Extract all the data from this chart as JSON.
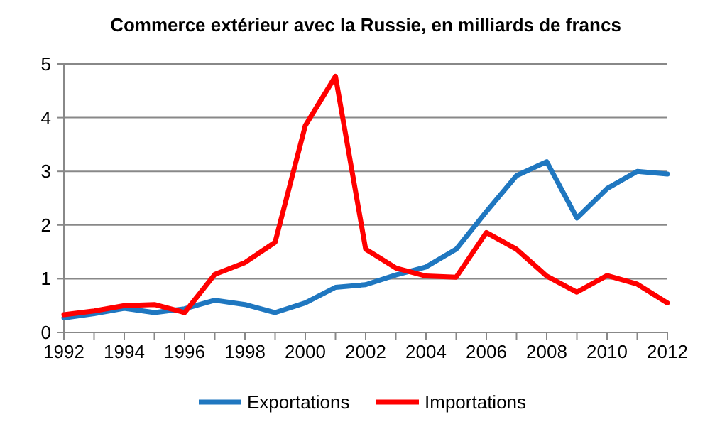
{
  "chart_data": {
    "type": "line",
    "title": "Commerce extérieur avec la Russie, en milliards de francs",
    "x": [
      1992,
      1993,
      1994,
      1995,
      1996,
      1997,
      1998,
      1999,
      2000,
      2001,
      2002,
      2003,
      2004,
      2005,
      2006,
      2007,
      2008,
      2009,
      2010,
      2011,
      2012
    ],
    "series": [
      {
        "name": "Exportations",
        "color": "#1f77c0",
        "values": [
          0.27,
          0.35,
          0.45,
          0.37,
          0.44,
          0.6,
          0.52,
          0.37,
          0.55,
          0.84,
          0.89,
          1.07,
          1.22,
          1.55,
          2.25,
          2.92,
          3.18,
          2.13,
          2.68,
          3.0,
          2.95
        ]
      },
      {
        "name": "Importations",
        "color": "#ff0000",
        "values": [
          0.33,
          0.4,
          0.5,
          0.52,
          0.37,
          1.08,
          1.3,
          1.68,
          3.85,
          4.77,
          1.55,
          1.2,
          1.05,
          1.03,
          1.86,
          1.55,
          1.05,
          0.75,
          1.06,
          0.9,
          0.55
        ]
      }
    ],
    "xlim": [
      1992,
      2012
    ],
    "xticks": [
      1992,
      1994,
      1996,
      1998,
      2000,
      2002,
      2004,
      2006,
      2008,
      2010,
      2012
    ],
    "ylim": [
      0,
      5
    ],
    "yticks": [
      0,
      1,
      2,
      3,
      4,
      5
    ],
    "grid": "y",
    "legend": "bottom",
    "marker": "none",
    "line_style": "solid"
  }
}
